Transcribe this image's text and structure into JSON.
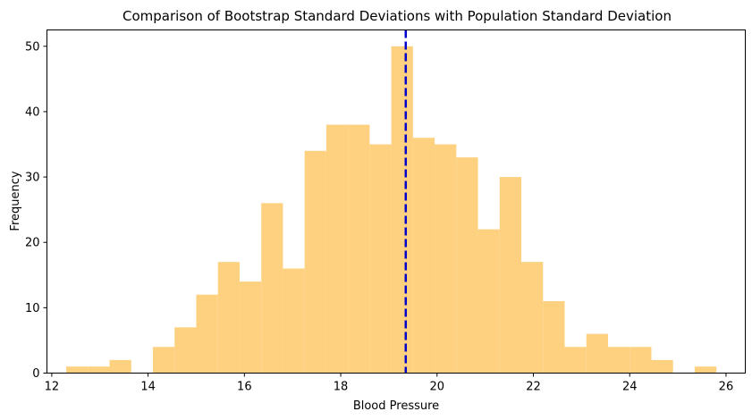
{
  "chart_data": {
    "type": "bar",
    "title": "Comparison of Bootstrap Standard Deviations with Population Standard Deviation",
    "xlabel": "Blood Pressure",
    "ylabel": "Frequency",
    "xlim": [
      11.9,
      26.4
    ],
    "ylim": [
      0,
      52.5
    ],
    "x_ticks": [
      12,
      14,
      16,
      18,
      20,
      22,
      24,
      26
    ],
    "y_ticks": [
      0,
      10,
      20,
      30,
      40,
      50
    ],
    "bins": [
      {
        "x0": 12.3,
        "x1": 12.75,
        "count": 1
      },
      {
        "x0": 12.75,
        "x1": 13.2,
        "count": 1
      },
      {
        "x0": 13.2,
        "x1": 13.65,
        "count": 2
      },
      {
        "x0": 13.65,
        "x1": 14.1,
        "count": 0
      },
      {
        "x0": 14.1,
        "x1": 14.55,
        "count": 4
      },
      {
        "x0": 14.55,
        "x1": 15.0,
        "count": 7
      },
      {
        "x0": 15.0,
        "x1": 15.45,
        "count": 12
      },
      {
        "x0": 15.45,
        "x1": 15.9,
        "count": 17
      },
      {
        "x0": 15.9,
        "x1": 16.35,
        "count": 14
      },
      {
        "x0": 16.35,
        "x1": 16.8,
        "count": 26
      },
      {
        "x0": 16.8,
        "x1": 17.25,
        "count": 16
      },
      {
        "x0": 17.25,
        "x1": 17.7,
        "count": 34
      },
      {
        "x0": 17.7,
        "x1": 18.15,
        "count": 38
      },
      {
        "x0": 18.15,
        "x1": 18.6,
        "count": 38
      },
      {
        "x0": 18.6,
        "x1": 19.05,
        "count": 35
      },
      {
        "x0": 19.05,
        "x1": 19.5,
        "count": 50
      },
      {
        "x0": 19.5,
        "x1": 19.95,
        "count": 36
      },
      {
        "x0": 19.95,
        "x1": 20.4,
        "count": 35
      },
      {
        "x0": 20.4,
        "x1": 20.85,
        "count": 33
      },
      {
        "x0": 20.85,
        "x1": 21.3,
        "count": 22
      },
      {
        "x0": 21.3,
        "x1": 21.75,
        "count": 30
      },
      {
        "x0": 21.75,
        "x1": 22.2,
        "count": 17
      },
      {
        "x0": 22.2,
        "x1": 22.65,
        "count": 11
      },
      {
        "x0": 22.65,
        "x1": 23.1,
        "count": 4
      },
      {
        "x0": 23.1,
        "x1": 23.55,
        "count": 6
      },
      {
        "x0": 23.55,
        "x1": 24.0,
        "count": 4
      },
      {
        "x0": 24.0,
        "x1": 24.45,
        "count": 4
      },
      {
        "x0": 24.45,
        "x1": 24.9,
        "count": 2
      },
      {
        "x0": 24.9,
        "x1": 25.35,
        "count": 0
      },
      {
        "x0": 25.35,
        "x1": 25.8,
        "count": 1
      }
    ],
    "reference_line": {
      "x": 19.35
    },
    "colors": {
      "bars": "#fdd17f",
      "reference_line": "#0000cc",
      "axes": "#000000"
    },
    "grid": false,
    "legend": "none"
  }
}
